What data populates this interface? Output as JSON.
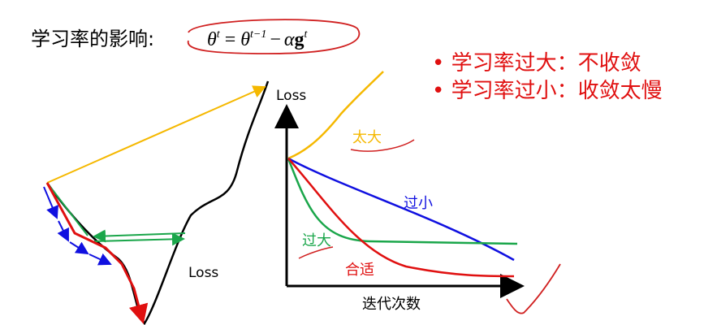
{
  "header": {
    "title": "学习率的影响:"
  },
  "formula": {
    "lhs": "θ",
    "lhs_sup": "t",
    "eq": "=",
    "rhs_theta": "θ",
    "rhs_sup": "t−1",
    "minus": "−",
    "alpha": "α",
    "g": "g",
    "g_sup": "t"
  },
  "bullets": [
    "学习率过大：不收敛",
    "学习率过小：收敛太慢"
  ],
  "left_diagram": {
    "curve_label": "Loss"
  },
  "right_chart": {
    "y_label": "Loss",
    "x_label": "迭代次数",
    "curves": [
      {
        "label": "太大"
      },
      {
        "label": "过小"
      },
      {
        "label": "过大"
      },
      {
        "label": "合适"
      }
    ]
  }
}
